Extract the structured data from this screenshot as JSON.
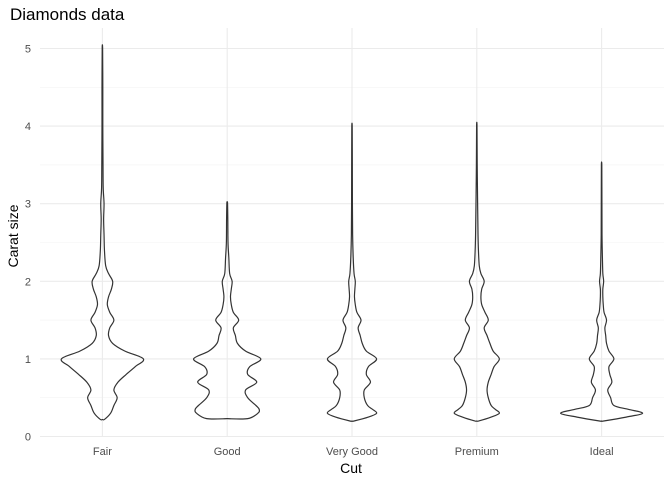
{
  "chart_data": {
    "type": "violin",
    "title": "Diamonds data",
    "xlabel": "Cut",
    "ylabel": "Carat size",
    "ylim": [
      0,
      5.2
    ],
    "yticks": [
      0,
      1,
      2,
      3,
      4,
      5
    ],
    "grid": true,
    "categories": [
      "Fair",
      "Good",
      "Very Good",
      "Premium",
      "Ideal"
    ],
    "violins": [
      {
        "category": "Fair",
        "min": 0.22,
        "max": 5.01,
        "profile": [
          [
            0.22,
            0.05
          ],
          [
            0.3,
            0.2
          ],
          [
            0.4,
            0.28
          ],
          [
            0.5,
            0.36
          ],
          [
            0.6,
            0.28
          ],
          [
            0.7,
            0.38
          ],
          [
            0.8,
            0.58
          ],
          [
            0.9,
            0.8
          ],
          [
            1.0,
            1.0
          ],
          [
            1.1,
            0.55
          ],
          [
            1.2,
            0.25
          ],
          [
            1.3,
            0.15
          ],
          [
            1.4,
            0.18
          ],
          [
            1.5,
            0.28
          ],
          [
            1.6,
            0.18
          ],
          [
            1.7,
            0.12
          ],
          [
            1.8,
            0.15
          ],
          [
            1.9,
            0.22
          ],
          [
            2.0,
            0.25
          ],
          [
            2.1,
            0.15
          ],
          [
            2.2,
            0.08
          ],
          [
            2.4,
            0.05
          ],
          [
            2.6,
            0.04
          ],
          [
            2.8,
            0.03
          ],
          [
            3.0,
            0.04
          ],
          [
            3.2,
            0.02
          ],
          [
            3.5,
            0.015
          ],
          [
            4.0,
            0.01
          ],
          [
            4.5,
            0.01
          ],
          [
            5.01,
            0.005
          ]
        ]
      },
      {
        "category": "Good",
        "min": 0.23,
        "max": 3.01,
        "profile": [
          [
            0.23,
            0.5
          ],
          [
            0.3,
            0.75
          ],
          [
            0.35,
            0.78
          ],
          [
            0.4,
            0.7
          ],
          [
            0.5,
            0.5
          ],
          [
            0.6,
            0.45
          ],
          [
            0.7,
            0.72
          ],
          [
            0.8,
            0.5
          ],
          [
            0.9,
            0.55
          ],
          [
            1.0,
            0.82
          ],
          [
            1.1,
            0.45
          ],
          [
            1.2,
            0.25
          ],
          [
            1.3,
            0.2
          ],
          [
            1.4,
            0.15
          ],
          [
            1.5,
            0.28
          ],
          [
            1.6,
            0.15
          ],
          [
            1.7,
            0.1
          ],
          [
            1.8,
            0.08
          ],
          [
            1.9,
            0.1
          ],
          [
            2.0,
            0.12
          ],
          [
            2.1,
            0.06
          ],
          [
            2.3,
            0.04
          ],
          [
            2.5,
            0.02
          ],
          [
            2.8,
            0.015
          ],
          [
            3.01,
            0.008
          ]
        ]
      },
      {
        "category": "Very Good",
        "min": 0.2,
        "max": 4.0,
        "profile": [
          [
            0.2,
            0.05
          ],
          [
            0.25,
            0.4
          ],
          [
            0.3,
            0.6
          ],
          [
            0.35,
            0.5
          ],
          [
            0.4,
            0.38
          ],
          [
            0.5,
            0.3
          ],
          [
            0.6,
            0.3
          ],
          [
            0.7,
            0.45
          ],
          [
            0.8,
            0.35
          ],
          [
            0.9,
            0.4
          ],
          [
            1.0,
            0.6
          ],
          [
            1.1,
            0.35
          ],
          [
            1.2,
            0.25
          ],
          [
            1.3,
            0.2
          ],
          [
            1.4,
            0.15
          ],
          [
            1.5,
            0.22
          ],
          [
            1.6,
            0.12
          ],
          [
            1.7,
            0.08
          ],
          [
            1.8,
            0.06
          ],
          [
            1.9,
            0.07
          ],
          [
            2.0,
            0.08
          ],
          [
            2.1,
            0.05
          ],
          [
            2.3,
            0.03
          ],
          [
            2.6,
            0.015
          ],
          [
            3.0,
            0.01
          ],
          [
            3.5,
            0.008
          ],
          [
            4.0,
            0.005
          ]
        ]
      },
      {
        "category": "Premium",
        "min": 0.2,
        "max": 4.01,
        "profile": [
          [
            0.2,
            0.05
          ],
          [
            0.25,
            0.35
          ],
          [
            0.3,
            0.55
          ],
          [
            0.35,
            0.45
          ],
          [
            0.4,
            0.35
          ],
          [
            0.5,
            0.28
          ],
          [
            0.6,
            0.25
          ],
          [
            0.7,
            0.28
          ],
          [
            0.8,
            0.35
          ],
          [
            0.9,
            0.42
          ],
          [
            1.0,
            0.55
          ],
          [
            1.1,
            0.4
          ],
          [
            1.2,
            0.32
          ],
          [
            1.3,
            0.25
          ],
          [
            1.4,
            0.18
          ],
          [
            1.5,
            0.28
          ],
          [
            1.6,
            0.2
          ],
          [
            1.7,
            0.12
          ],
          [
            1.8,
            0.1
          ],
          [
            1.9,
            0.12
          ],
          [
            2.0,
            0.18
          ],
          [
            2.1,
            0.1
          ],
          [
            2.2,
            0.06
          ],
          [
            2.4,
            0.04
          ],
          [
            2.6,
            0.03
          ],
          [
            3.0,
            0.02
          ],
          [
            3.5,
            0.01
          ],
          [
            4.01,
            0.005
          ]
        ]
      },
      {
        "category": "Ideal",
        "min": 0.2,
        "max": 3.5,
        "profile": [
          [
            0.2,
            0.05
          ],
          [
            0.25,
            0.6
          ],
          [
            0.3,
            1.0
          ],
          [
            0.35,
            0.65
          ],
          [
            0.4,
            0.3
          ],
          [
            0.5,
            0.22
          ],
          [
            0.6,
            0.15
          ],
          [
            0.7,
            0.25
          ],
          [
            0.8,
            0.2
          ],
          [
            0.9,
            0.18
          ],
          [
            1.0,
            0.3
          ],
          [
            1.1,
            0.18
          ],
          [
            1.2,
            0.12
          ],
          [
            1.3,
            0.1
          ],
          [
            1.4,
            0.08
          ],
          [
            1.5,
            0.12
          ],
          [
            1.6,
            0.06
          ],
          [
            1.7,
            0.04
          ],
          [
            1.8,
            0.03
          ],
          [
            1.9,
            0.03
          ],
          [
            2.0,
            0.05
          ],
          [
            2.1,
            0.03
          ],
          [
            2.3,
            0.02
          ],
          [
            2.6,
            0.01
          ],
          [
            3.0,
            0.008
          ],
          [
            3.5,
            0.005
          ]
        ]
      }
    ]
  }
}
